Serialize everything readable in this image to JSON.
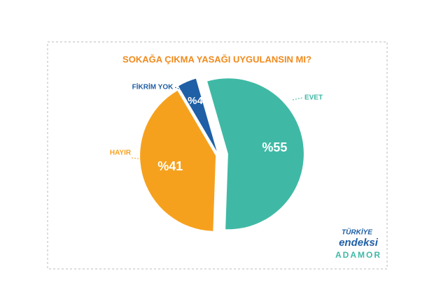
{
  "chart_data": {
    "type": "pie",
    "title": "SOKAĞA ÇIKMA YASAĞI UYGULANSIN MI?",
    "categories": [
      "EVET",
      "HAYIR",
      "FİKRİM YOK"
    ],
    "values": [
      55,
      41,
      4
    ],
    "value_labels": [
      "%55",
      "%41",
      "%4"
    ],
    "colors": [
      "#3fb9a5",
      "#f6a11d",
      "#1f5fa6"
    ]
  },
  "logo": {
    "line1": "TÜRKİYE",
    "line2": "endeksi",
    "brand": "ADAMOR"
  }
}
